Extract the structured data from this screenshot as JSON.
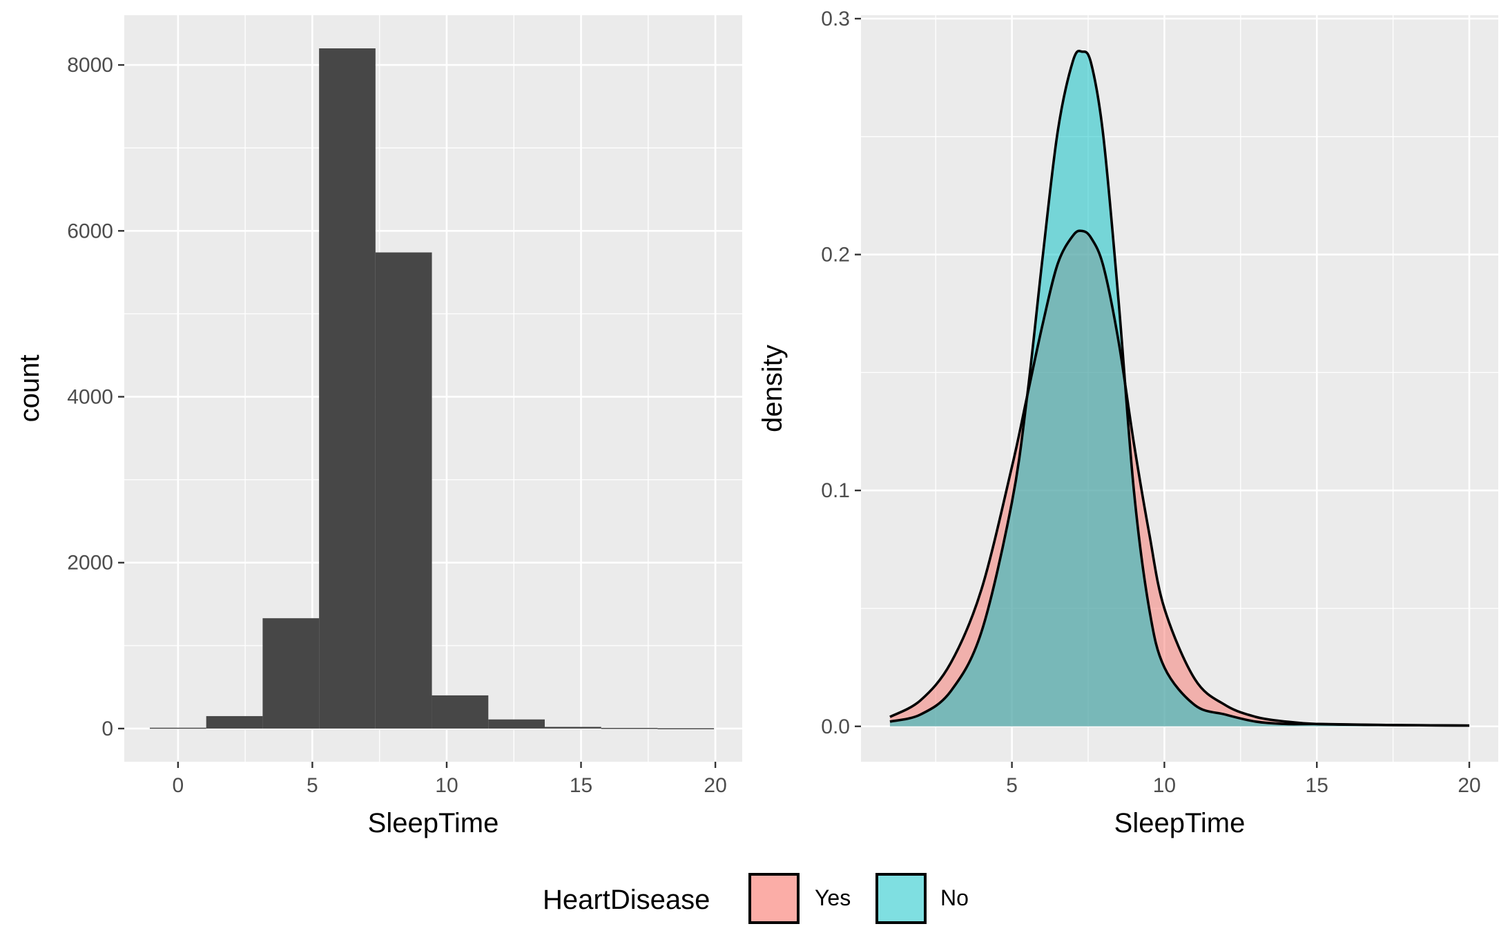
{
  "chart_data": [
    {
      "type": "bar",
      "subtype": "histogram",
      "xlabel": "SleepTime",
      "ylabel": "count",
      "xlim": [
        -2,
        21
      ],
      "ylim": [
        -400,
        8600
      ],
      "x_ticks": [
        0,
        5,
        10,
        15,
        20
      ],
      "y_ticks": [
        0,
        2000,
        4000,
        6000,
        8000
      ],
      "x_minor_ticks": [
        2.5,
        7.5,
        12.5,
        17.5
      ],
      "y_minor_ticks": [
        1000,
        3000,
        5000,
        7000
      ],
      "bins": [
        {
          "x0": -1.05,
          "x1": 1.05,
          "count": 10
        },
        {
          "x0": 1.05,
          "x1": 3.15,
          "count": 150
        },
        {
          "x0": 3.15,
          "x1": 5.25,
          "count": 1330
        },
        {
          "x0": 5.25,
          "x1": 7.35,
          "count": 8200
        },
        {
          "x0": 7.35,
          "x1": 9.45,
          "count": 5740
        },
        {
          "x0": 9.45,
          "x1": 11.55,
          "count": 400
        },
        {
          "x0": 11.55,
          "x1": 13.65,
          "count": 110
        },
        {
          "x0": 13.65,
          "x1": 15.75,
          "count": 20
        },
        {
          "x0": 15.75,
          "x1": 17.85,
          "count": 8
        },
        {
          "x0": 17.85,
          "x1": 19.95,
          "count": 4
        }
      ],
      "bar_color": "#474747",
      "panel_bg": "#ebebeb",
      "grid": true
    },
    {
      "type": "area",
      "subtype": "density",
      "xlabel": "SleepTime",
      "ylabel": "density",
      "xlim": [
        0.05,
        20.95
      ],
      "ylim": [
        -0.015,
        0.3
      ],
      "x_ticks": [
        5,
        10,
        15,
        20
      ],
      "y_ticks": [
        0.0,
        0.1,
        0.2,
        0.3
      ],
      "y_tick_labels": [
        "0.0",
        "0.1",
        "0.2",
        "0.3"
      ],
      "x_minor_ticks": [
        2.5,
        7.5,
        12.5,
        17.5
      ],
      "y_minor_ticks": [
        0.05,
        0.15,
        0.25
      ],
      "series": [
        {
          "name": "Yes",
          "color": "#f8766d",
          "x": [
            1,
            2,
            3,
            4,
            5,
            5.5,
            6,
            6.5,
            7,
            7.3,
            7.6,
            8,
            8.5,
            9,
            9.5,
            10,
            11,
            12,
            13,
            14,
            15,
            17,
            20
          ],
          "y": [
            0.004,
            0.011,
            0.027,
            0.058,
            0.11,
            0.14,
            0.17,
            0.196,
            0.208,
            0.21,
            0.207,
            0.195,
            0.163,
            0.12,
            0.082,
            0.05,
            0.02,
            0.009,
            0.004,
            0.002,
            0.001,
            0.0006,
            0.0003
          ]
        },
        {
          "name": "No",
          "color": "#00bfc4",
          "x": [
            1,
            2,
            3,
            4,
            5,
            5.5,
            6,
            6.5,
            7,
            7.3,
            7.6,
            8,
            8.5,
            9,
            9.5,
            10,
            11,
            12,
            13,
            14,
            15,
            17,
            20
          ],
          "y": [
            0.002,
            0.005,
            0.015,
            0.04,
            0.095,
            0.14,
            0.198,
            0.252,
            0.282,
            0.286,
            0.281,
            0.25,
            0.18,
            0.1,
            0.05,
            0.025,
            0.009,
            0.005,
            0.002,
            0.001,
            0.001,
            0.0006,
            0.0003
          ]
        }
      ],
      "fill_alpha": 0.5,
      "panel_bg": "#ebebeb",
      "grid": true
    }
  ],
  "legend": {
    "title": "HeartDisease",
    "placement": "bottom",
    "items": [
      {
        "label": "Yes",
        "color": "#f8766d"
      },
      {
        "label": "No",
        "color": "#00bfc4"
      }
    ]
  }
}
